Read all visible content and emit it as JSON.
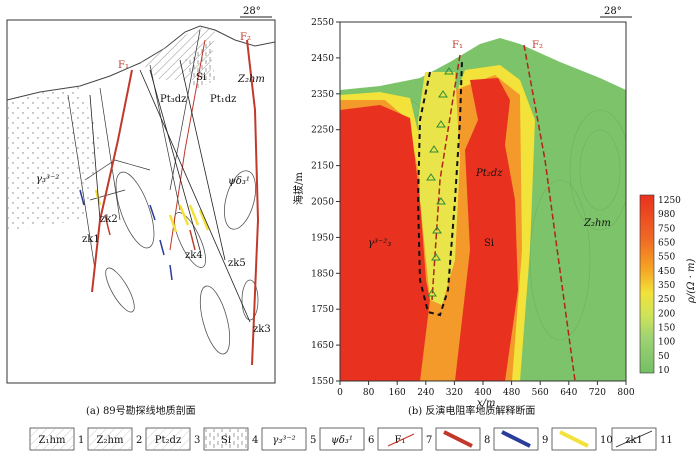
{
  "panel_a": {
    "caption": "(a) 89号勘探线地质剖面",
    "north": "28°",
    "labels": {
      "f1": "F₁",
      "f2": "F₂",
      "z2hm": "Z₂hm",
      "pt3dz": "Pt₃dz",
      "pt1dz": "Pt₁dz",
      "si": "Si",
      "gamma": "γ₃³⁻²",
      "psi": "ψδ₃¹",
      "zk1": "zk1",
      "zk2": "zk2",
      "zk3": "zk3",
      "zk4": "zk4",
      "zk5": "zk5"
    }
  },
  "panel_b": {
    "caption": "(b) 反演电阻率地质解释断面",
    "north": "28°",
    "ylabel": "海拔/m",
    "xlabel": "x/m",
    "y_ticks": [
      "2550",
      "2450",
      "2350",
      "2250",
      "2150",
      "2050",
      "1950",
      "1850",
      "1750",
      "1650",
      "1550"
    ],
    "x_ticks": [
      "0",
      "80",
      "160",
      "240",
      "320",
      "400",
      "480",
      "560",
      "640",
      "720",
      "800"
    ],
    "labels": {
      "f1": "F₁",
      "f2": "F₂",
      "pt2dz": "Pt₂dz",
      "si": "Si",
      "gamma": "γ³⁻²₃",
      "z2hm": "Z₂hm"
    },
    "colorbar": {
      "title": "ρ/(Ω · m)",
      "ticks": [
        "1250",
        "980",
        "750",
        "650",
        "550",
        "450",
        "350",
        "250",
        "200",
        "150",
        "100",
        "50",
        "10"
      ]
    }
  },
  "legend": {
    "items": [
      {
        "sym": "Z₁hm",
        "num": "1"
      },
      {
        "sym": "Z₂hm",
        "num": "2"
      },
      {
        "sym": "Pt₂dz",
        "num": "3"
      },
      {
        "sym": "Si",
        "num": "4"
      },
      {
        "sym": "γ₃³⁻²",
        "num": "5"
      },
      {
        "sym": "ψδ₃¹",
        "num": "6"
      },
      {
        "sym": "F₁",
        "num": "7"
      },
      {
        "sym": "",
        "num": "8"
      },
      {
        "sym": "",
        "num": "9"
      },
      {
        "sym": "",
        "num": "10"
      },
      {
        "sym": "zk1",
        "num": "11"
      }
    ]
  },
  "colors": {
    "red": "#e8321f",
    "green": "#7cc36a",
    "yellow": "#f2e23a",
    "orange": "#f39a2b",
    "fault_red": "#c0392b",
    "blue": "#2a3d9a"
  }
}
